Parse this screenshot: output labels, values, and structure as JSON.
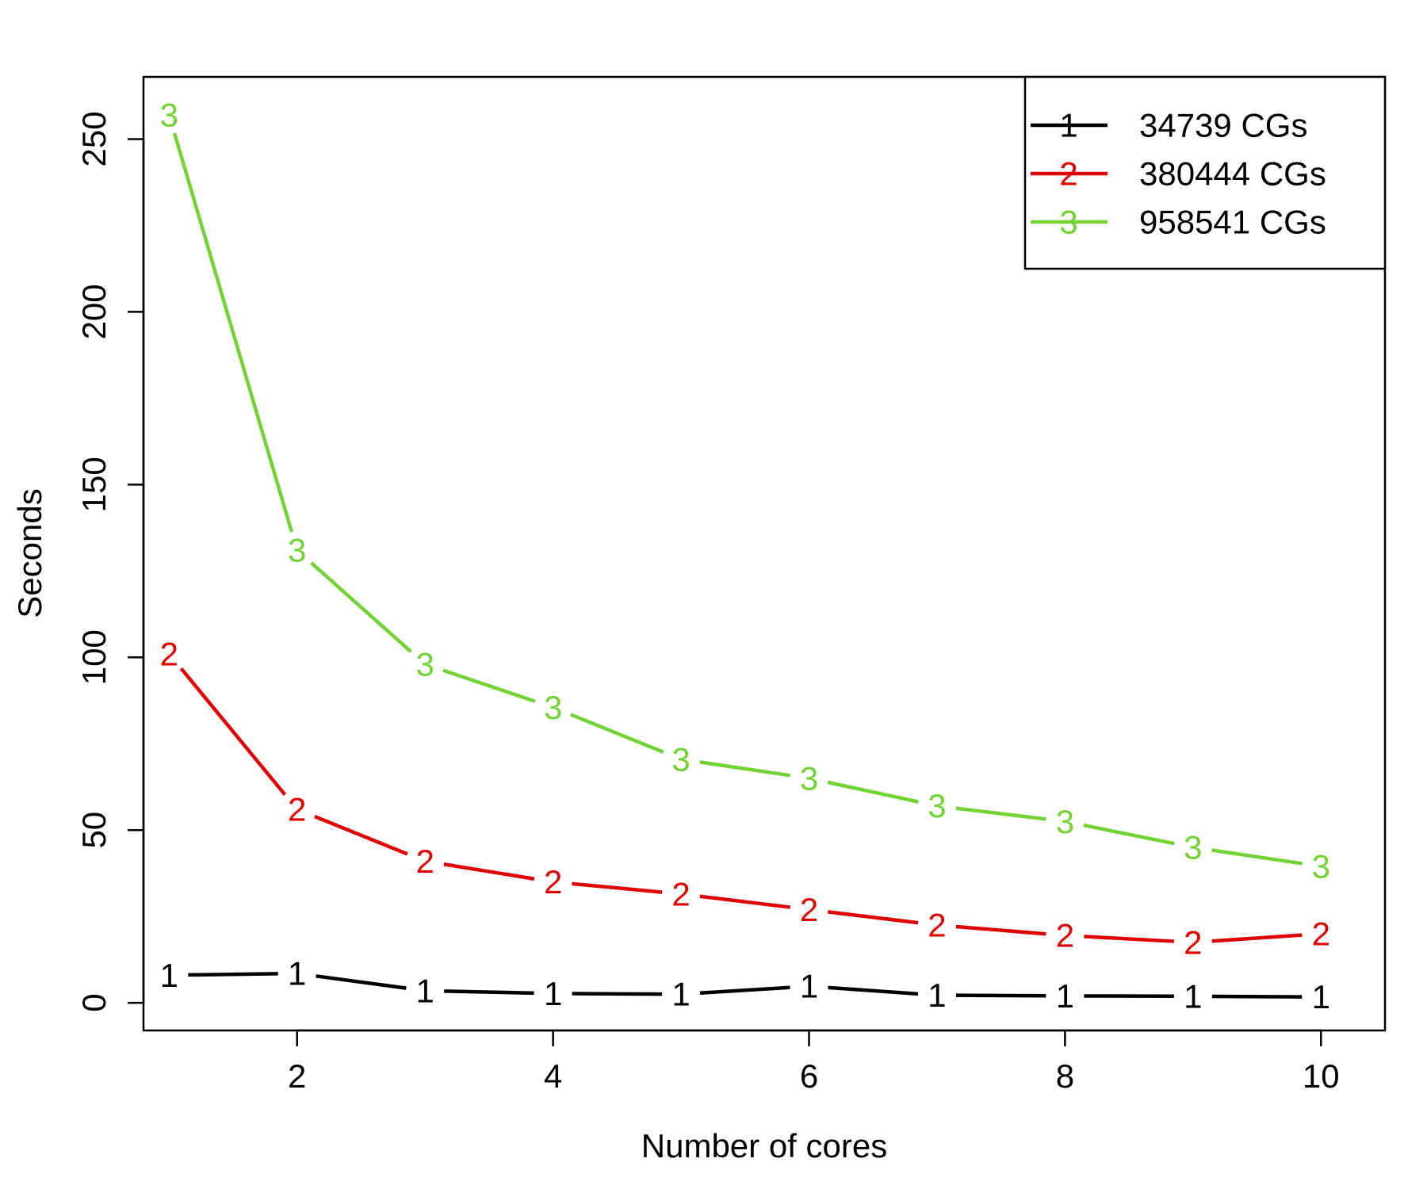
{
  "chart_data": {
    "type": "line",
    "title": "",
    "xlabel": "Number of cores",
    "ylabel": "Seconds",
    "xlim": [
      0.8,
      10.5
    ],
    "ylim": [
      -8,
      268
    ],
    "x_ticks": [
      2,
      4,
      6,
      8,
      10
    ],
    "y_ticks": [
      0,
      50,
      100,
      150,
      200,
      250
    ],
    "grid": false,
    "legend_position": "top-right",
    "x": [
      1,
      2,
      3,
      4,
      5,
      6,
      7,
      8,
      9,
      10
    ],
    "series": [
      {
        "name": "34739 CGs",
        "marker": "1",
        "color": "#000000",
        "values": [
          8,
          8.5,
          3.5,
          2.7,
          2.5,
          4.8,
          2.2,
          2,
          1.9,
          1.7
        ]
      },
      {
        "name": "380444 CGs",
        "marker": "2",
        "color": "#df0000",
        "values": [
          101,
          56,
          41,
          35,
          31.5,
          27,
          22.5,
          19.5,
          17.5,
          20
        ]
      },
      {
        "name": "958541 CGs",
        "marker": "3",
        "color": "#73d236",
        "values": [
          257,
          131,
          98,
          85.5,
          70.5,
          65,
          57,
          52.5,
          45,
          39.5
        ]
      }
    ]
  }
}
